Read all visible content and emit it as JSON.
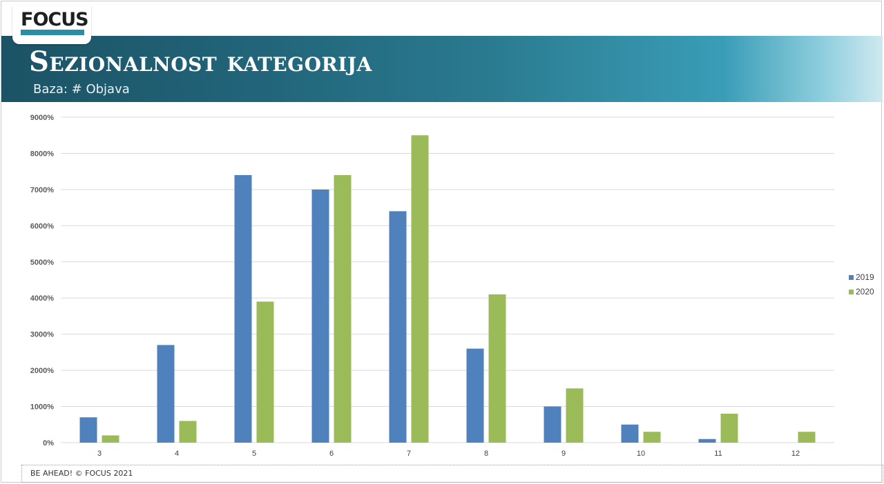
{
  "header": {
    "logo_text": "FOCUS",
    "title": "Sezionalnost kategorija",
    "subtitle": "Baza: # Objava"
  },
  "footer": {
    "text": "BE AHEAD! © FOCUS 2021"
  },
  "colors": {
    "series_2019": "#4f81bd",
    "series_2020": "#9bbb59",
    "grid": "#d9d9d9"
  },
  "chart_data": {
    "type": "bar",
    "categories": [
      "3",
      "4",
      "5",
      "6",
      "7",
      "8",
      "9",
      "10",
      "11",
      "12"
    ],
    "series": [
      {
        "name": "2019",
        "values": [
          700,
          2700,
          7400,
          7000,
          6400,
          2600,
          1000,
          500,
          100,
          0
        ]
      },
      {
        "name": "2020",
        "values": [
          200,
          600,
          3900,
          7400,
          8500,
          4100,
          1500,
          300,
          800,
          300
        ]
      }
    ],
    "yticks": [
      "0%",
      "1000%",
      "2000%",
      "3000%",
      "4000%",
      "5000%",
      "6000%",
      "7000%",
      "8000%",
      "9000%"
    ],
    "ylim": [
      0,
      9000
    ],
    "grid": true,
    "legend": "right"
  }
}
